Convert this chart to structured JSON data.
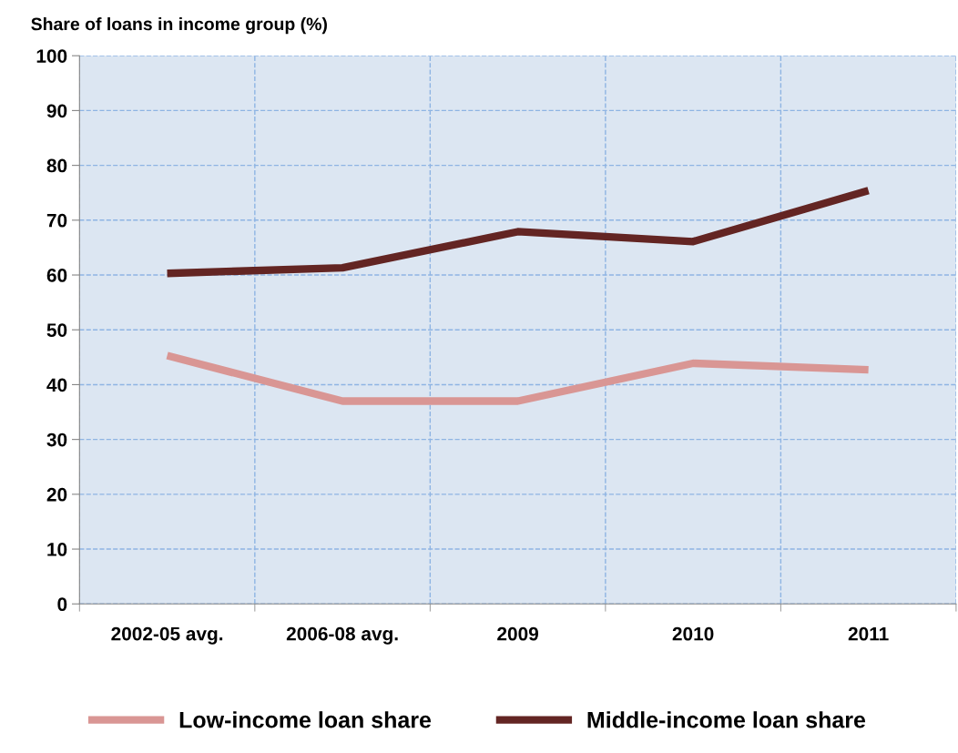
{
  "chart_data": {
    "type": "line",
    "ylabel": "Share of loans in income group (%)",
    "categories": [
      "2002-05 avg.",
      "2006-08 avg.",
      "2009",
      "2010",
      "2011"
    ],
    "series": [
      {
        "name": "Low-income loan share",
        "color": "#d99694",
        "values": [
          45.3,
          37.0,
          37.0,
          43.9,
          42.7
        ]
      },
      {
        "name": "Middle-income loan share",
        "color": "#632523",
        "values": [
          60.3,
          61.3,
          67.9,
          66.1,
          75.4
        ]
      }
    ],
    "ylim": [
      0,
      100
    ],
    "yticks": [
      0,
      10,
      20,
      30,
      40,
      50,
      60,
      70,
      80,
      90,
      100
    ],
    "grid": true,
    "legend": "bottom",
    "marker": "none",
    "line_style": "solid"
  }
}
